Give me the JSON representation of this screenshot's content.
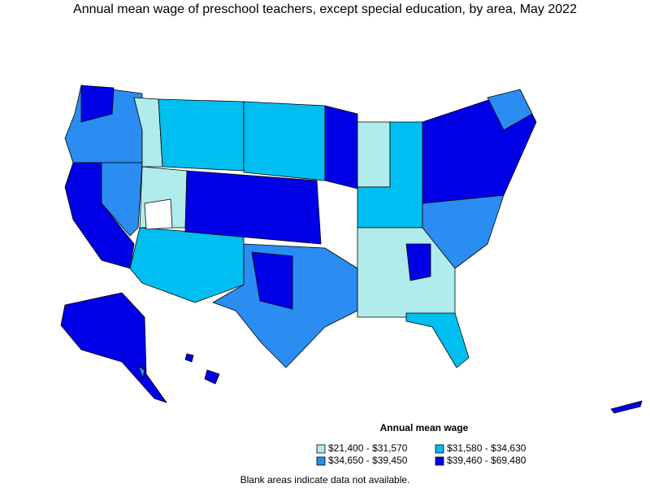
{
  "title": "Annual mean wage of preschool teachers, except special education, by area, May 2022",
  "legend": {
    "title": "Annual mean wage",
    "items": [
      {
        "label": "$21,400 - $31,570",
        "color": "#b0ecec"
      },
      {
        "label": "$31,580 - $34,630",
        "color": "#00bff0"
      },
      {
        "label": "$34,650 - $39,450",
        "color": "#2b8cf2"
      },
      {
        "label": "$39,460 - $69,480",
        "color": "#0000e6"
      }
    ]
  },
  "note": "Blank areas indicate data not available."
}
